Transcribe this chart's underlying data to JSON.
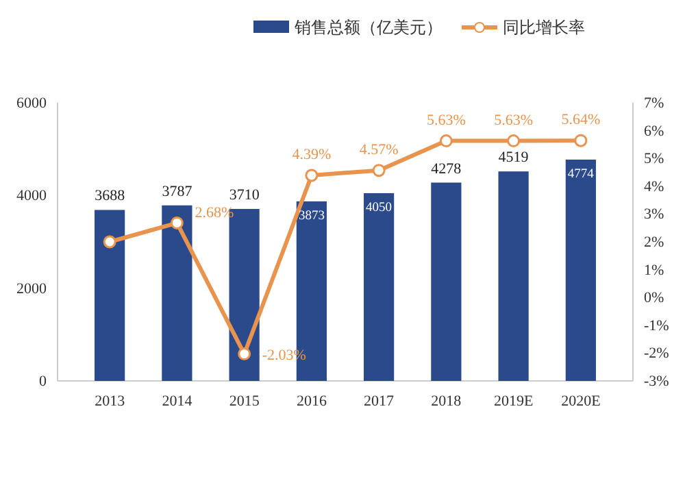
{
  "chart_data": {
    "type": "bar",
    "categories": [
      "2013",
      "2014",
      "2015",
      "2016",
      "2017",
      "2018",
      "2019E",
      "2020E"
    ],
    "series": [
      {
        "name": "销售总额（亿美元）",
        "type": "bar",
        "color": "#2b4a8b",
        "values": [
          3688,
          3787,
          3710,
          3873,
          4050,
          4278,
          4519,
          4774
        ]
      },
      {
        "name": "同比增长率",
        "type": "line",
        "axis": "y2",
        "color": "#e8944f",
        "marker": "circle",
        "values": [
          2.0,
          2.68,
          -2.03,
          4.39,
          4.57,
          5.63,
          5.63,
          5.64
        ],
        "value_labels": [
          null,
          "2.68%",
          "-2.03%",
          "4.39%",
          "4.57%",
          "5.63%",
          "5.63%",
          "5.64%"
        ]
      }
    ],
    "data_labels": true,
    "ylim": [
      0,
      6000
    ],
    "yticks": [
      0,
      2000,
      4000,
      6000
    ],
    "y2lim": [
      -3,
      7
    ],
    "y2ticks": [
      {
        "value": -3,
        "label": "-3%"
      },
      {
        "value": -2,
        "label": "-2%"
      },
      {
        "value": -1,
        "label": "-1%"
      },
      {
        "value": 0,
        "label": "0%"
      },
      {
        "value": 1,
        "label": "1%"
      },
      {
        "value": 2,
        "label": "2%"
      },
      {
        "value": 3,
        "label": "3%"
      },
      {
        "value": 4,
        "label": "4%"
      },
      {
        "value": 5,
        "label": "5%"
      },
      {
        "value": 6,
        "label": "6%"
      },
      {
        "value": 7,
        "label": "7%"
      }
    ],
    "legend": "top",
    "grid": false
  }
}
